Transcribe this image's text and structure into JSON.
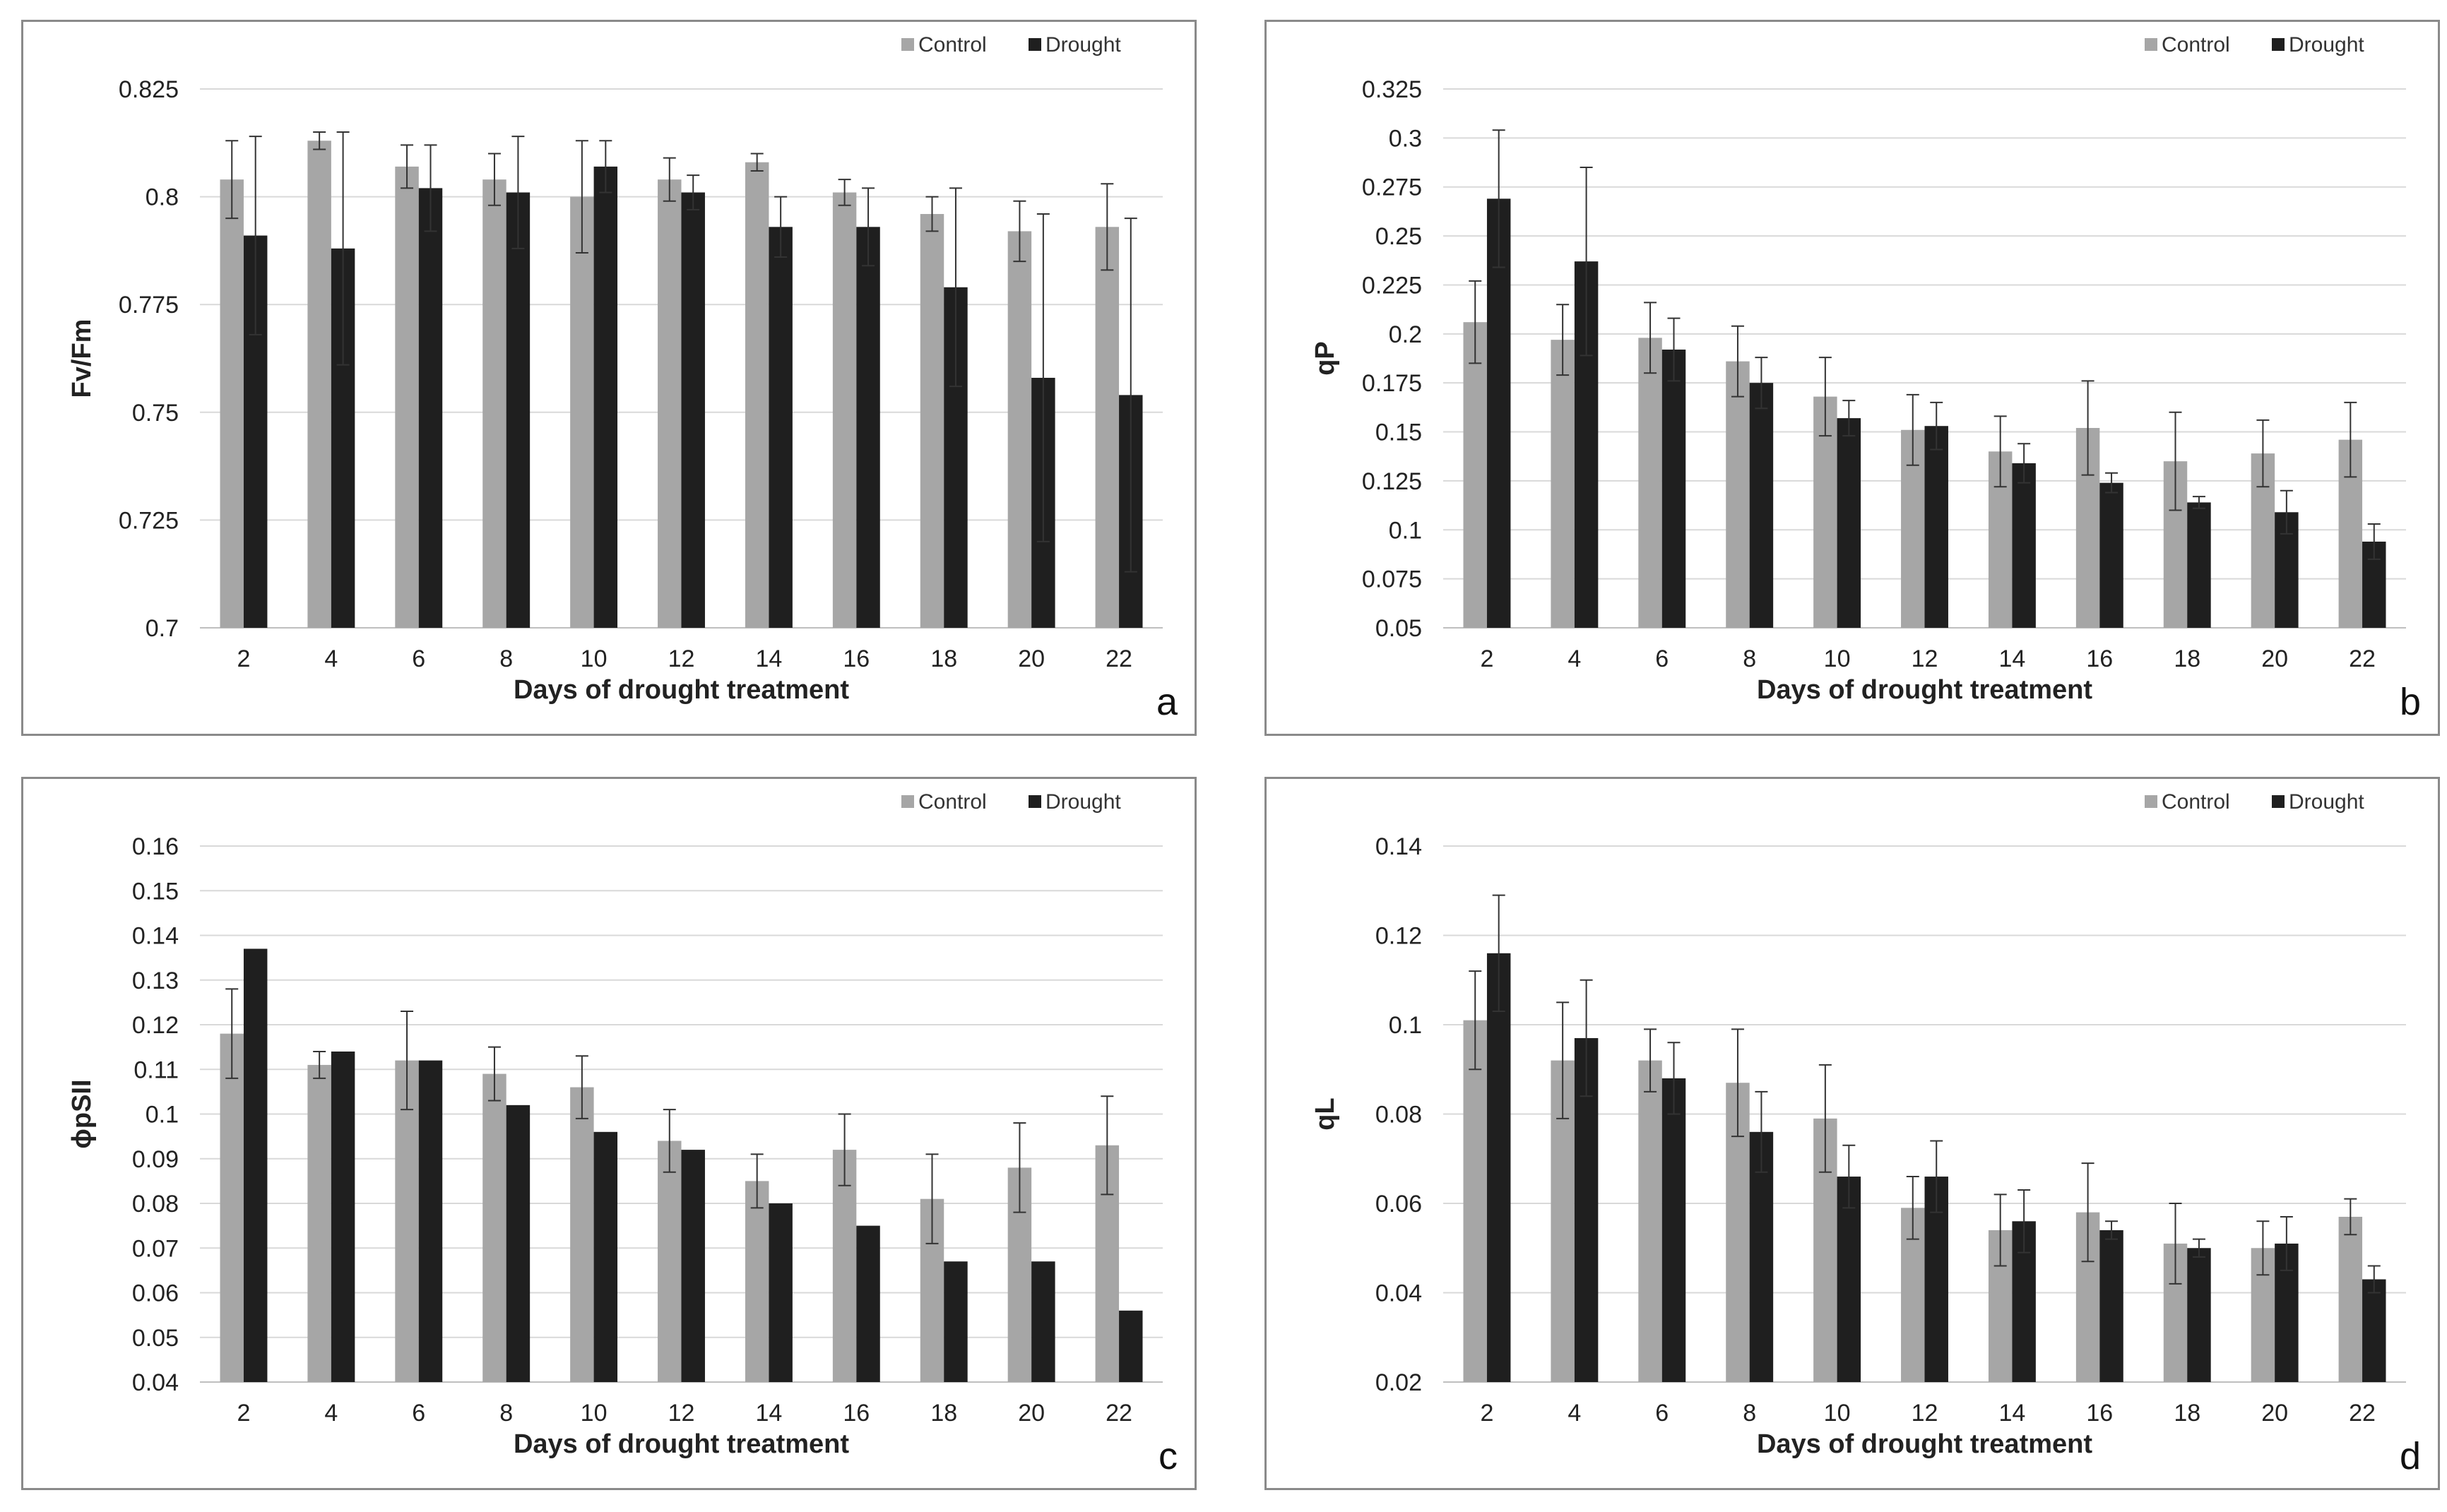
{
  "chart_data": [
    {
      "type": "bar",
      "panel_label": "a",
      "categories": [
        "2",
        "4",
        "6",
        "8",
        "10",
        "12",
        "14",
        "16",
        "18",
        "20",
        "22"
      ],
      "xlabel": "Days of drought treatment",
      "ylabel": "Fv/Fm",
      "ylim": [
        0.7,
        0.825
      ],
      "yticks": [
        0.7,
        0.725,
        0.75,
        0.775,
        0.8,
        0.825
      ],
      "ytick_labels": [
        "0.7",
        "0.725",
        "0.75",
        "0.775",
        "0.8",
        "0.825"
      ],
      "legend_position": "top-right",
      "series": [
        {
          "name": "Control",
          "color": "#a6a6a6",
          "values": [
            0.804,
            0.813,
            0.807,
            0.804,
            0.8,
            0.804,
            0.808,
            0.801,
            0.796,
            0.792,
            0.793
          ],
          "errors": [
            0.009,
            0.002,
            0.005,
            0.006,
            0.013,
            0.005,
            0.002,
            0.003,
            0.004,
            0.007,
            0.01
          ]
        },
        {
          "name": "Drought",
          "color": "#1f1f1f",
          "values": [
            0.791,
            0.788,
            0.802,
            0.801,
            0.807,
            0.801,
            0.793,
            0.793,
            0.779,
            0.758,
            0.754
          ],
          "errors": [
            0.023,
            0.027,
            0.01,
            0.013,
            0.006,
            0.004,
            0.007,
            0.009,
            0.023,
            0.038,
            0.041
          ]
        }
      ]
    },
    {
      "type": "bar",
      "panel_label": "b",
      "categories": [
        "2",
        "4",
        "6",
        "8",
        "10",
        "12",
        "14",
        "16",
        "18",
        "20",
        "22"
      ],
      "xlabel": "Days of drought treatment",
      "ylabel": "qP",
      "ylim": [
        0.05,
        0.325
      ],
      "yticks": [
        0.05,
        0.075,
        0.1,
        0.125,
        0.15,
        0.175,
        0.2,
        0.225,
        0.25,
        0.275,
        0.3,
        0.325
      ],
      "ytick_labels": [
        "0.05",
        "0.075",
        "0.1",
        "0.125",
        "0.15",
        "0.175",
        "0.2",
        "0.225",
        "0.25",
        "0.275",
        "0.3",
        "0.325"
      ],
      "legend_position": "top-right",
      "series": [
        {
          "name": "Control",
          "color": "#a6a6a6",
          "values": [
            0.206,
            0.197,
            0.198,
            0.186,
            0.168,
            0.151,
            0.14,
            0.152,
            0.135,
            0.139,
            0.146
          ],
          "errors": [
            0.021,
            0.018,
            0.018,
            0.018,
            0.02,
            0.018,
            0.018,
            0.024,
            0.025,
            0.017,
            0.019
          ]
        },
        {
          "name": "Drought",
          "color": "#1f1f1f",
          "values": [
            0.269,
            0.237,
            0.192,
            0.175,
            0.157,
            0.153,
            0.134,
            0.124,
            0.114,
            0.109,
            0.094
          ],
          "errors": [
            0.035,
            0.048,
            0.016,
            0.013,
            0.009,
            0.012,
            0.01,
            0.005,
            0.003,
            0.011,
            0.009
          ]
        }
      ]
    },
    {
      "type": "bar",
      "panel_label": "c",
      "categories": [
        "2",
        "4",
        "6",
        "8",
        "10",
        "12",
        "14",
        "16",
        "18",
        "20",
        "22"
      ],
      "xlabel": "Days of drought treatment",
      "ylabel": "ϕpSII",
      "ylim": [
        0.04,
        0.16
      ],
      "yticks": [
        0.04,
        0.05,
        0.06,
        0.07,
        0.08,
        0.09,
        0.1,
        0.11,
        0.12,
        0.13,
        0.14,
        0.15,
        0.16
      ],
      "ytick_labels": [
        "0.04",
        "0.05",
        "0.06",
        "0.07",
        "0.08",
        "0.09",
        "0.1",
        "0.11",
        "0.12",
        "0.13",
        "0.14",
        "0.15",
        "0.16"
      ],
      "legend_position": "top-right",
      "series": [
        {
          "name": "Control",
          "color": "#a6a6a6",
          "values": [
            0.118,
            0.111,
            0.112,
            0.109,
            0.106,
            0.094,
            0.085,
            0.092,
            0.081,
            0.088,
            0.093
          ],
          "errors": [
            0.01,
            0.003,
            0.011,
            0.006,
            0.007,
            0.007,
            0.006,
            0.008,
            0.01,
            0.01,
            0.011
          ]
        },
        {
          "name": "Drought",
          "color": "#1f1f1f",
          "values": [
            0.137,
            0.114,
            0.112,
            0.102,
            0.096,
            0.092,
            0.08,
            0.075,
            0.067,
            0.067,
            0.056
          ]
        }
      ]
    },
    {
      "type": "bar",
      "panel_label": "d",
      "categories": [
        "2",
        "4",
        "6",
        "8",
        "10",
        "12",
        "14",
        "16",
        "18",
        "20",
        "22"
      ],
      "xlabel": "Days of drought treatment",
      "ylabel": "qL",
      "ylim": [
        0.02,
        0.14
      ],
      "yticks": [
        0.02,
        0.04,
        0.06,
        0.08,
        0.1,
        0.12,
        0.14
      ],
      "ytick_labels": [
        "0.02",
        "0.04",
        "0.06",
        "0.08",
        "0.1",
        "0.12",
        "0.14"
      ],
      "legend_position": "top-right",
      "series": [
        {
          "name": "Control",
          "color": "#a6a6a6",
          "values": [
            0.101,
            0.092,
            0.092,
            0.087,
            0.079,
            0.059,
            0.054,
            0.058,
            0.051,
            0.05,
            0.057
          ],
          "errors": [
            0.011,
            0.013,
            0.007,
            0.012,
            0.012,
            0.007,
            0.008,
            0.011,
            0.009,
            0.006,
            0.004
          ]
        },
        {
          "name": "Drought",
          "color": "#1f1f1f",
          "values": [
            0.116,
            0.097,
            0.088,
            0.076,
            0.066,
            0.066,
            0.056,
            0.054,
            0.05,
            0.051,
            0.043
          ],
          "errors": [
            0.013,
            0.013,
            0.008,
            0.009,
            0.007,
            0.008,
            0.007,
            0.002,
            0.002,
            0.006,
            0.003
          ]
        }
      ]
    }
  ]
}
